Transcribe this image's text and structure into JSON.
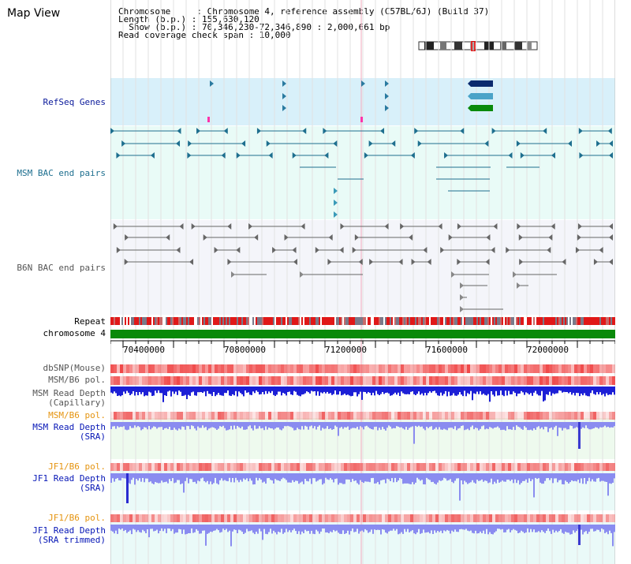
{
  "title": "Map View",
  "info": {
    "line1": "Chromosome     : Chromosome 4, reference assembly (C57BL/6J) (Build 37)",
    "line2": "Length (b.p.) : 155,630,120",
    "line3": "  Show (b.p.) : 70,346,230-72,346,890 : 2,000,661 bp",
    "line4": "Read coverage check span : 10,000"
  },
  "tracks": {
    "refseq": "RefSeq Genes",
    "msm_bac": "MSM BAC end pairs",
    "b6n_bac": "B6N BAC end pairs",
    "repeat": "Repeat",
    "chromosome": "chromosome 4",
    "dbsnp": "dbSNP(Mouse)",
    "msm_b6_pol_1": "MSM/B6 pol.",
    "msm_depth_cap_1": "MSM Read Depth",
    "msm_depth_cap_2": "(Capillary)",
    "msm_b6_pol_2": "MSM/B6 pol.",
    "msm_depth_sra_1": "MSM Read Depth",
    "msm_depth_sra_2": "(SRA)",
    "jf1_b6_pol_1": "JF1/B6 pol.",
    "jf1_depth_sra_1": "JF1 Read Depth",
    "jf1_depth_sra_2": "(SRA)",
    "jf1_b6_pol_2": "JF1/B6 pol.",
    "jf1_depth_trim_1": "JF1 Read Depth",
    "jf1_depth_trim_2": "(SRA trimmed)"
  },
  "axis": {
    "ticks": [
      "70400000",
      "70800000",
      "71200000",
      "71600000",
      "72000000"
    ]
  },
  "colors": {
    "refseq_bg": "#d8f0fa",
    "msm_bg": "#e9fbf7",
    "b6n_bg": "#f4f5fa",
    "chrom": "#0a8a0a",
    "depth_cap": "#1c1fd6",
    "depth_sra": "#8a8cf0"
  }
}
